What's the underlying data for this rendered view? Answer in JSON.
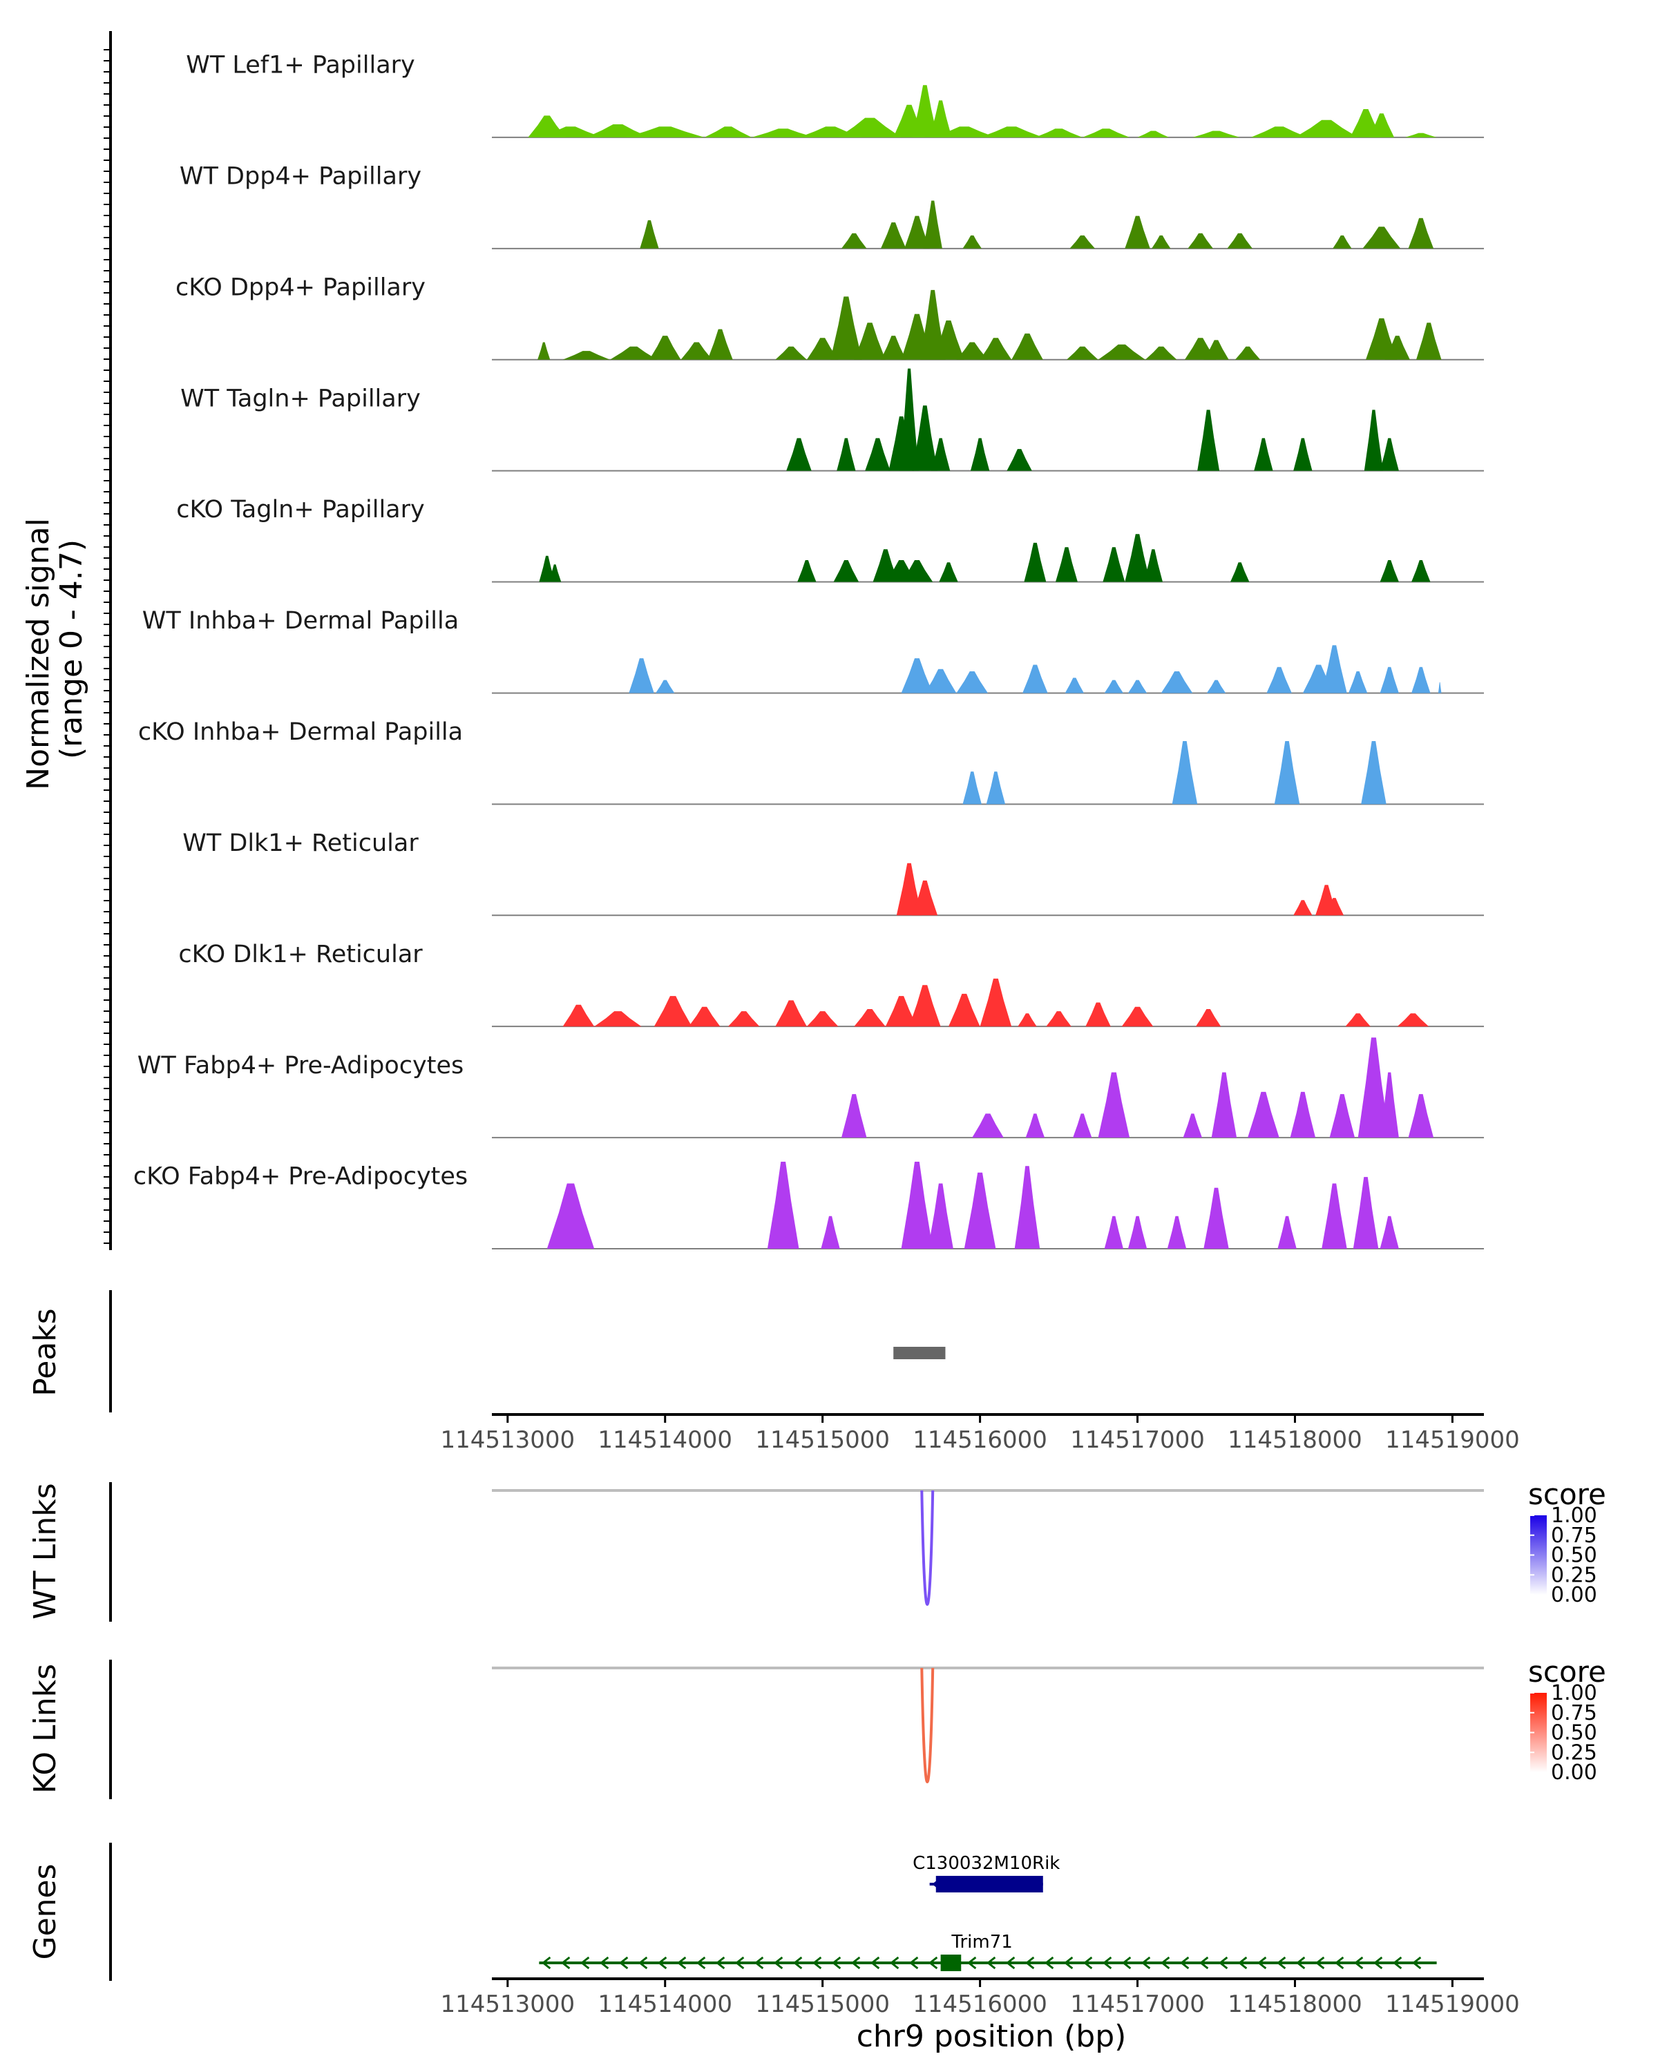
{
  "chart_data": {
    "type": "area",
    "region": "chr9",
    "xlabel": "chr9 position (bp)",
    "ylabel_line1": "Normalized signal",
    "ylabel_line2": "(range 0 - 4.7)",
    "xlim": [
      114512900,
      114519200
    ],
    "x_ticks": [
      {
        "value": 114513000,
        "label": "114513000"
      },
      {
        "value": 114514000,
        "label": "114514000"
      },
      {
        "value": 114515000,
        "label": "114515000"
      },
      {
        "value": 114516000,
        "label": "114516000"
      },
      {
        "value": 114517000,
        "label": "114517000"
      },
      {
        "value": 114518000,
        "label": "114518000"
      },
      {
        "value": 114519000,
        "label": "114519000"
      }
    ],
    "signal_range": [
      0,
      4.7
    ],
    "coverage_tracks": [
      {
        "name": "WT Lef1+ Papillary",
        "color": "#66CC00",
        "peaks": [
          [
            114513250,
            1.0,
            120
          ],
          [
            114513400,
            0.5,
            200
          ],
          [
            114513700,
            0.6,
            200
          ],
          [
            114514000,
            0.5,
            250
          ],
          [
            114514400,
            0.5,
            150
          ],
          [
            114514750,
            0.4,
            200
          ],
          [
            114515050,
            0.5,
            200
          ],
          [
            114515300,
            0.9,
            200
          ],
          [
            114515550,
            1.5,
            100
          ],
          [
            114515650,
            2.4,
            80
          ],
          [
            114515750,
            1.7,
            70
          ],
          [
            114515900,
            0.5,
            200
          ],
          [
            114516200,
            0.5,
            200
          ],
          [
            114516500,
            0.4,
            150
          ],
          [
            114516800,
            0.4,
            150
          ],
          [
            114517100,
            0.3,
            100
          ],
          [
            114517500,
            0.3,
            150
          ],
          [
            114517900,
            0.5,
            180
          ],
          [
            114518200,
            0.8,
            200
          ],
          [
            114518450,
            1.3,
            100
          ],
          [
            114518550,
            1.1,
            80
          ],
          [
            114518800,
            0.2,
            100
          ]
        ]
      },
      {
        "name": "WT Dpp4+ Papillary",
        "color": "#448800",
        "peaks": [
          [
            114513900,
            1.3,
            60
          ],
          [
            114515200,
            0.7,
            80
          ],
          [
            114515450,
            1.2,
            80
          ],
          [
            114515600,
            1.5,
            80
          ],
          [
            114515700,
            2.2,
            60
          ],
          [
            114515950,
            0.6,
            60
          ],
          [
            114516650,
            0.6,
            80
          ],
          [
            114517000,
            1.5,
            80
          ],
          [
            114517150,
            0.6,
            60
          ],
          [
            114517400,
            0.7,
            80
          ],
          [
            114517650,
            0.7,
            80
          ],
          [
            114518300,
            0.6,
            60
          ],
          [
            114518550,
            1.0,
            120
          ],
          [
            114518800,
            1.4,
            80
          ]
        ]
      },
      {
        "name": "cKO Dpp4+ Papillary",
        "color": "#448800",
        "peaks": [
          [
            114513230,
            0.8,
            40
          ],
          [
            114513500,
            0.4,
            150
          ],
          [
            114513800,
            0.6,
            150
          ],
          [
            114514000,
            1.1,
            100
          ],
          [
            114514200,
            0.8,
            100
          ],
          [
            114514350,
            1.4,
            80
          ],
          [
            114514800,
            0.6,
            100
          ],
          [
            114515000,
            1.0,
            100
          ],
          [
            114515150,
            2.9,
            100
          ],
          [
            114515300,
            1.7,
            100
          ],
          [
            114515450,
            1.1,
            80
          ],
          [
            114515600,
            2.1,
            100
          ],
          [
            114515700,
            3.2,
            80
          ],
          [
            114515800,
            1.8,
            100
          ],
          [
            114515950,
            0.8,
            100
          ],
          [
            114516100,
            1.0,
            100
          ],
          [
            114516300,
            1.2,
            100
          ],
          [
            114516650,
            0.6,
            100
          ],
          [
            114516900,
            0.7,
            150
          ],
          [
            114517150,
            0.6,
            100
          ],
          [
            114517400,
            1.0,
            100
          ],
          [
            114517500,
            0.9,
            80
          ],
          [
            114517700,
            0.6,
            80
          ],
          [
            114518550,
            1.9,
            100
          ],
          [
            114518650,
            1.1,
            80
          ],
          [
            114518850,
            1.7,
            80
          ]
        ]
      },
      {
        "name": "WT Tagln+ Papillary",
        "color": "#006400",
        "peaks": [
          [
            114514850,
            1.5,
            80
          ],
          [
            114515150,
            1.5,
            60
          ],
          [
            114515350,
            1.5,
            80
          ],
          [
            114515500,
            2.5,
            80
          ],
          [
            114515550,
            4.7,
            60
          ],
          [
            114515650,
            3.0,
            80
          ],
          [
            114515750,
            1.5,
            60
          ],
          [
            114516000,
            1.5,
            60
          ],
          [
            114516250,
            1.0,
            80
          ],
          [
            114517450,
            2.8,
            70
          ],
          [
            114517800,
            1.5,
            60
          ],
          [
            114518050,
            1.5,
            60
          ],
          [
            114518500,
            2.8,
            60
          ],
          [
            114518600,
            1.5,
            60
          ]
        ]
      },
      {
        "name": "cKO Tagln+ Papillary",
        "color": "#006400",
        "peaks": [
          [
            114513250,
            1.2,
            50
          ],
          [
            114513300,
            0.8,
            40
          ],
          [
            114514900,
            1.0,
            60
          ],
          [
            114515150,
            1.0,
            80
          ],
          [
            114515400,
            1.5,
            80
          ],
          [
            114515500,
            1.0,
            100
          ],
          [
            114515600,
            1.0,
            100
          ],
          [
            114515800,
            0.9,
            60
          ],
          [
            114516350,
            1.8,
            70
          ],
          [
            114516550,
            1.6,
            70
          ],
          [
            114516850,
            1.6,
            70
          ],
          [
            114517000,
            2.2,
            80
          ],
          [
            114517100,
            1.5,
            60
          ],
          [
            114517650,
            0.9,
            60
          ],
          [
            114518600,
            1.0,
            60
          ],
          [
            114518800,
            1.0,
            60
          ]
        ]
      },
      {
        "name": "WT Inhba+ Dermal Papilla",
        "color": "#56A5E8",
        "peaks": [
          [
            114513850,
            1.6,
            80
          ],
          [
            114514000,
            0.6,
            60
          ],
          [
            114515600,
            1.6,
            100
          ],
          [
            114515750,
            1.1,
            100
          ],
          [
            114515950,
            1.0,
            100
          ],
          [
            114516350,
            1.3,
            80
          ],
          [
            114516600,
            0.7,
            60
          ],
          [
            114516850,
            0.6,
            60
          ],
          [
            114517000,
            0.6,
            60
          ],
          [
            114517250,
            1.0,
            100
          ],
          [
            114517500,
            0.6,
            60
          ],
          [
            114517900,
            1.2,
            80
          ],
          [
            114518150,
            1.3,
            100
          ],
          [
            114518250,
            2.2,
            80
          ],
          [
            114518400,
            1.0,
            60
          ],
          [
            114518600,
            1.2,
            60
          ],
          [
            114518800,
            1.2,
            60
          ],
          [
            114518920,
            0.5,
            10
          ]
        ]
      },
      {
        "name": "cKO Inhba+ Dermal Papilla",
        "color": "#56A5E8",
        "peaks": [
          [
            114515950,
            1.5,
            60
          ],
          [
            114516100,
            1.5,
            60
          ],
          [
            114517300,
            2.9,
            80
          ],
          [
            114517950,
            2.9,
            80
          ],
          [
            114518500,
            2.9,
            80
          ]
        ]
      },
      {
        "name": "WT Dlk1+ Reticular",
        "color": "#FF3333",
        "peaks": [
          [
            114515550,
            2.4,
            80
          ],
          [
            114515650,
            1.6,
            80
          ],
          [
            114518050,
            0.7,
            60
          ],
          [
            114518200,
            1.4,
            70
          ],
          [
            114518250,
            0.8,
            60
          ]
        ]
      },
      {
        "name": "cKO Dlk1+ Reticular",
        "color": "#FF3333",
        "peaks": [
          [
            114513450,
            1.0,
            100
          ],
          [
            114513700,
            0.7,
            150
          ],
          [
            114514050,
            1.4,
            120
          ],
          [
            114514250,
            0.9,
            100
          ],
          [
            114514500,
            0.7,
            100
          ],
          [
            114514800,
            1.2,
            100
          ],
          [
            114515000,
            0.7,
            100
          ],
          [
            114515300,
            0.8,
            100
          ],
          [
            114515500,
            1.4,
            100
          ],
          [
            114515650,
            1.9,
            100
          ],
          [
            114515900,
            1.5,
            100
          ],
          [
            114516100,
            2.2,
            100
          ],
          [
            114516300,
            0.6,
            60
          ],
          [
            114516500,
            0.7,
            80
          ],
          [
            114516750,
            1.1,
            80
          ],
          [
            114517000,
            0.9,
            100
          ],
          [
            114517450,
            0.8,
            80
          ],
          [
            114518400,
            0.6,
            80
          ],
          [
            114518750,
            0.6,
            100
          ]
        ]
      },
      {
        "name": "WT Fabp4+ Pre-Adipocytes",
        "color": "#B13CF0",
        "peaks": [
          [
            114515200,
            2.0,
            80
          ],
          [
            114516050,
            1.1,
            100
          ],
          [
            114516350,
            1.1,
            60
          ],
          [
            114516650,
            1.1,
            60
          ],
          [
            114516850,
            3.0,
            100
          ],
          [
            114517350,
            1.1,
            60
          ],
          [
            114517550,
            3.0,
            80
          ],
          [
            114517800,
            2.1,
            100
          ],
          [
            114518050,
            2.1,
            80
          ],
          [
            114518300,
            2.0,
            80
          ],
          [
            114518500,
            4.6,
            100
          ],
          [
            114518600,
            3.0,
            60
          ],
          [
            114518800,
            2.0,
            80
          ]
        ]
      },
      {
        "name": "cKO Fabp4+ Pre-Adipocytes",
        "color": "#B13CF0",
        "peaks": [
          [
            114513400,
            3.0,
            150
          ],
          [
            114514750,
            4.0,
            100
          ],
          [
            114515050,
            1.5,
            60
          ],
          [
            114515600,
            4.0,
            100
          ],
          [
            114515750,
            3.0,
            80
          ],
          [
            114516000,
            3.5,
            100
          ],
          [
            114516300,
            3.8,
            80
          ],
          [
            114516850,
            1.5,
            60
          ],
          [
            114517000,
            1.5,
            60
          ],
          [
            114517250,
            1.5,
            60
          ],
          [
            114517500,
            2.8,
            80
          ],
          [
            114517950,
            1.5,
            60
          ],
          [
            114518250,
            3.0,
            80
          ],
          [
            114518450,
            3.3,
            80
          ],
          [
            114518600,
            1.5,
            60
          ]
        ]
      }
    ],
    "peaks_track": {
      "label": "Peaks",
      "regions": [
        [
          114515450,
          114515780
        ]
      ],
      "color": "#666666"
    },
    "link_tracks": [
      {
        "label": "WT Links",
        "color": "#7B52F5",
        "start": 114515630,
        "end": 114515700,
        "legend_title": "score",
        "legend_color": "#1a00e6",
        "legend_ticks": [
          "1.00",
          "0.75",
          "0.50",
          "0.25",
          "0.00"
        ]
      },
      {
        "label": "KO Links",
        "color": "#F26B4A",
        "start": 114515630,
        "end": 114515700,
        "legend_title": "score",
        "legend_color": "#ff1a00",
        "legend_ticks": [
          "1.00",
          "0.75",
          "0.50",
          "0.25",
          "0.00"
        ]
      }
    ],
    "genes_track": {
      "label": "Genes",
      "genes": [
        {
          "name": "C130032M10Rik",
          "start": 114515680,
          "end": 114516400,
          "exons": [
            [
              114515720,
              114516400
            ]
          ],
          "strand": "-",
          "color": "#00008B"
        },
        {
          "name": "Trim71",
          "start": 114513200,
          "end": 114518900,
          "exons": [
            [
              114515750,
              114515880
            ]
          ],
          "strand": "-",
          "color": "#006400"
        }
      ]
    }
  }
}
